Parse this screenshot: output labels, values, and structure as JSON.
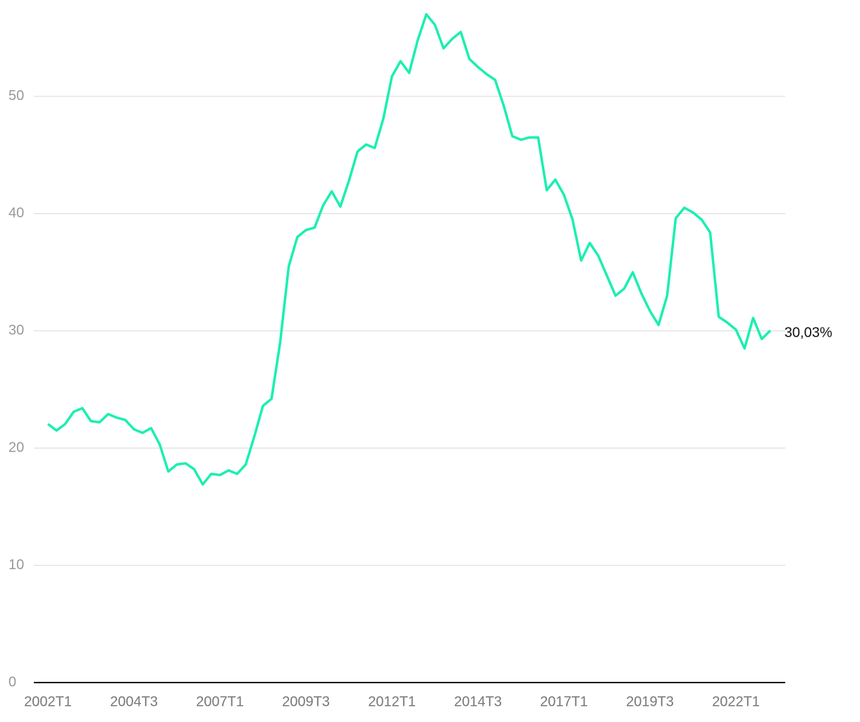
{
  "chart_data": {
    "type": "line",
    "categories": [
      "2002T1",
      null,
      null,
      null,
      null,
      null,
      null,
      null,
      null,
      null,
      "2004T3",
      null,
      null,
      null,
      null,
      null,
      null,
      null,
      null,
      null,
      "2007T1",
      null,
      null,
      null,
      null,
      null,
      null,
      null,
      null,
      null,
      "2009T3",
      null,
      null,
      null,
      null,
      null,
      null,
      null,
      null,
      null,
      "2012T1",
      null,
      null,
      null,
      null,
      null,
      null,
      null,
      null,
      null,
      "2014T3",
      null,
      null,
      null,
      null,
      null,
      null,
      null,
      null,
      null,
      "2017T1",
      null,
      null,
      null,
      null,
      null,
      null,
      null,
      null,
      null,
      "2019T3",
      null,
      null,
      null,
      null,
      null,
      null,
      null,
      null,
      null,
      "2022T1",
      null,
      null,
      null,
      null
    ],
    "values": [
      22.05,
      21.5,
      22.05,
      23.1,
      23.4,
      22.3,
      22.2,
      22.9,
      22.6,
      22.4,
      21.6,
      21.3,
      21.7,
      20.3,
      18.0,
      18.6,
      18.7,
      18.2,
      16.9,
      17.8,
      17.7,
      18.1,
      17.8,
      18.6,
      21.0,
      23.6,
      24.2,
      29.0,
      35.5,
      38.0,
      38.6,
      38.8,
      40.7,
      41.9,
      40.6,
      42.8,
      45.3,
      45.9,
      45.6,
      48.1,
      51.7,
      53.0,
      52.0,
      54.8,
      57.0,
      56.1,
      54.1,
      54.9,
      55.5,
      53.2,
      52.5,
      51.9,
      51.4,
      49.2,
      46.6,
      46.3,
      46.5,
      46.5,
      42.0,
      42.9,
      41.6,
      39.5,
      36.0,
      37.5,
      36.4,
      34.7,
      33.0,
      33.6,
      35.0,
      33.2,
      31.7,
      30.5,
      33.0,
      39.6,
      40.5,
      40.1,
      39.5,
      38.4,
      31.2,
      30.7,
      30.1,
      28.5,
      31.1,
      29.3,
      30.03
    ],
    "value_labels": [
      null,
      null,
      null,
      null,
      null,
      null,
      null,
      null,
      null,
      null,
      null,
      null,
      null,
      null,
      null,
      null,
      null,
      null,
      null,
      null,
      null,
      null,
      null,
      null,
      null,
      null,
      null,
      null,
      null,
      null,
      null,
      null,
      null,
      null,
      null,
      null,
      null,
      null,
      null,
      null,
      null,
      null,
      null,
      null,
      null,
      null,
      null,
      null,
      null,
      null,
      null,
      null,
      null,
      null,
      null,
      null,
      null,
      null,
      null,
      null,
      null,
      null,
      null,
      null,
      null,
      null,
      null,
      null,
      null,
      null,
      null,
      null,
      null,
      null,
      null,
      null,
      null,
      null,
      null,
      null,
      null,
      null,
      null,
      null,
      "30,03%"
    ],
    "color": "#1aefb0",
    "ylim": [
      0,
      57.5
    ],
    "yticks": [
      0,
      10,
      20,
      30,
      40,
      50
    ],
    "grid": true
  }
}
